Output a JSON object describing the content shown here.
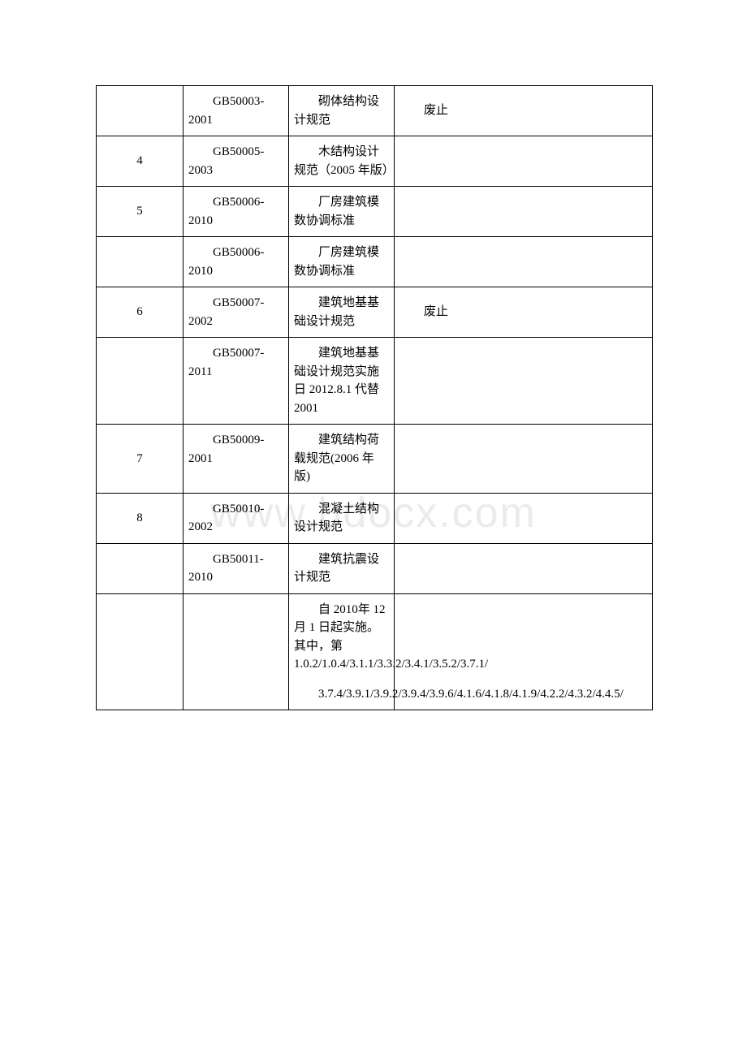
{
  "watermark": "www.bdocx.com",
  "table": {
    "columns": {
      "col1_width": 107,
      "col2_width": 130,
      "col3_width": 130,
      "col4_width": 318
    },
    "border_color": "#000000",
    "text_color": "#000000",
    "font_size": 15,
    "rows": [
      {
        "num": "",
        "code": "GB50003-2001",
        "name": "砌体结构设计规范",
        "status": "废止"
      },
      {
        "num": "4",
        "code": "GB50005-2003",
        "name": "木结构设计规范（2005 年版）",
        "status": ""
      },
      {
        "num": "5",
        "code": "GB50006-2010",
        "name": "厂房建筑模数协调标准",
        "status": ""
      },
      {
        "num": "",
        "code": "GB50006-2010",
        "name": "厂房建筑模数协调标准",
        "status": ""
      },
      {
        "num": "6",
        "code": "GB50007-2002",
        "name": "建筑地基基础设计规范",
        "status": "废止"
      },
      {
        "num": "",
        "code": "GB50007-2011",
        "name": "建筑地基基础设计规范实施日 2012.8.1 代替 2001",
        "status": ""
      },
      {
        "num": "7",
        "code": "GB50009-2001",
        "name": "建筑结构荷载规范(2006 年版)",
        "status": ""
      },
      {
        "num": "8",
        "code": "GB50010-2002",
        "name": "混凝土结构设计规范",
        "status": ""
      },
      {
        "num": "",
        "code": "GB50011-2010",
        "name": "建筑抗震设计规范",
        "status": ""
      },
      {
        "num": "",
        "code": "",
        "name_para1": "自 2010年 12 月 1 日起实施。其中，第 1.0.2/1.0.4/3.1.1/3.3.2/3.4.1/3.5.2/3.7.1/",
        "name_para2": "3.7.4/3.9.1/3.9.2/3.9.4/3.9.6/4.1.6/4.1.8/4.1.9/4.2.2/4.3.2/4.4.5/",
        "status": ""
      }
    ]
  }
}
